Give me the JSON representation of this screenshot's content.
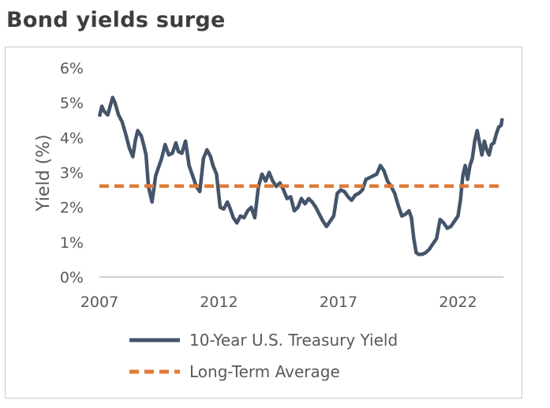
{
  "chart_data": {
    "type": "line",
    "title": "Bond yields surge",
    "xlabel": "",
    "ylabel": "Yield (%)",
    "xlim": [
      2007,
      2023.9
    ],
    "ylim": [
      0,
      6
    ],
    "x_ticks": [
      2007,
      2012,
      2017,
      2022
    ],
    "x_tick_labels": [
      "2007",
      "2012",
      "2017",
      "2022"
    ],
    "y_ticks": [
      0,
      1,
      2,
      3,
      4,
      5,
      6
    ],
    "y_tick_labels": [
      "0%",
      "1%",
      "2%",
      "3%",
      "4%",
      "5%",
      "6%"
    ],
    "grid": false,
    "legend": "bottom",
    "series": [
      {
        "name": "10-Year U.S. Treasury Yield",
        "color": "#44546a",
        "style": "solid",
        "x": [
          2007.0,
          2007.1,
          2007.2,
          2007.35,
          2007.45,
          2007.55,
          2007.65,
          2007.8,
          2007.95,
          2008.1,
          2008.25,
          2008.4,
          2008.5,
          2008.6,
          2008.75,
          2008.85,
          2008.95,
          2009.05,
          2009.2,
          2009.35,
          2009.45,
          2009.6,
          2009.75,
          2009.9,
          2010.05,
          2010.2,
          2010.3,
          2010.45,
          2010.6,
          2010.75,
          2010.9,
          2011.05,
          2011.2,
          2011.35,
          2011.5,
          2011.65,
          2011.75,
          2011.9,
          2012.05,
          2012.2,
          2012.35,
          2012.45,
          2012.6,
          2012.75,
          2012.9,
          2013.05,
          2013.2,
          2013.35,
          2013.5,
          2013.65,
          2013.8,
          2013.95,
          2014.1,
          2014.25,
          2014.4,
          2014.55,
          2014.7,
          2014.85,
          2015.0,
          2015.15,
          2015.3,
          2015.45,
          2015.6,
          2015.75,
          2015.9,
          2016.05,
          2016.2,
          2016.35,
          2016.5,
          2016.65,
          2016.8,
          2016.95,
          2017.1,
          2017.25,
          2017.4,
          2017.55,
          2017.7,
          2017.85,
          2018.0,
          2018.15,
          2018.3,
          2018.45,
          2018.6,
          2018.75,
          2018.9,
          2019.05,
          2019.2,
          2019.35,
          2019.5,
          2019.65,
          2019.8,
          2019.95,
          2020.05,
          2020.15,
          2020.25,
          2020.35,
          2020.5,
          2020.65,
          2020.8,
          2020.95,
          2021.1,
          2021.25,
          2021.4,
          2021.55,
          2021.7,
          2021.85,
          2022.0,
          2022.1,
          2022.2,
          2022.3,
          2022.4,
          2022.5,
          2022.6,
          2022.7,
          2022.8,
          2022.9,
          2023.0,
          2023.1,
          2023.2,
          2023.3,
          2023.4,
          2023.5,
          2023.6,
          2023.7,
          2023.8,
          2023.85
        ],
        "y": [
          4.6,
          4.9,
          4.75,
          4.65,
          4.9,
          5.15,
          5.0,
          4.65,
          4.45,
          4.1,
          3.7,
          3.45,
          3.9,
          4.2,
          4.05,
          3.8,
          3.5,
          2.6,
          2.15,
          2.9,
          3.1,
          3.4,
          3.8,
          3.5,
          3.55,
          3.85,
          3.6,
          3.55,
          3.9,
          3.2,
          2.9,
          2.6,
          2.45,
          3.4,
          3.65,
          3.45,
          3.2,
          2.95,
          2.0,
          1.95,
          2.15,
          2.0,
          1.7,
          1.55,
          1.75,
          1.7,
          1.9,
          2.0,
          1.7,
          2.6,
          2.95,
          2.75,
          3.0,
          2.75,
          2.6,
          2.7,
          2.5,
          2.25,
          2.3,
          1.9,
          2.0,
          2.25,
          2.1,
          2.25,
          2.15,
          2.0,
          1.8,
          1.6,
          1.45,
          1.6,
          1.75,
          2.4,
          2.5,
          2.45,
          2.3,
          2.2,
          2.35,
          2.4,
          2.5,
          2.8,
          2.85,
          2.9,
          2.95,
          3.2,
          3.05,
          2.75,
          2.6,
          2.4,
          2.05,
          1.75,
          1.8,
          1.9,
          1.7,
          1.1,
          0.7,
          0.65,
          0.65,
          0.7,
          0.8,
          0.95,
          1.1,
          1.65,
          1.55,
          1.4,
          1.45,
          1.6,
          1.75,
          2.2,
          2.9,
          3.2,
          2.8,
          3.2,
          3.4,
          3.9,
          4.2,
          3.85,
          3.5,
          3.9,
          3.65,
          3.5,
          3.8,
          3.85,
          4.1,
          4.3,
          4.35,
          4.55
        ]
      },
      {
        "name": "Long-Term Average",
        "color": "#e07b39",
        "style": "dashed",
        "x": [
          2007.0,
          2023.9
        ],
        "y": [
          2.61,
          2.61
        ]
      }
    ]
  }
}
